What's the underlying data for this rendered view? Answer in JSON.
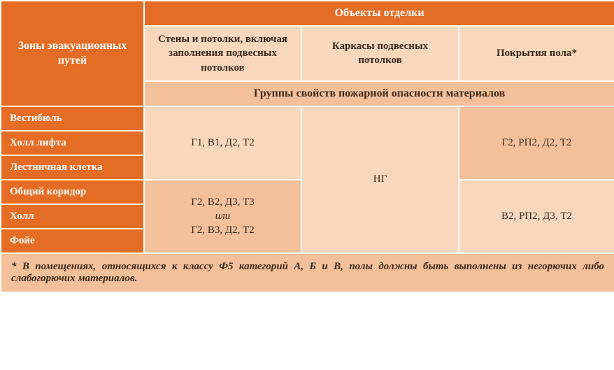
{
  "table": {
    "type": "table",
    "colors": {
      "orange": "#e56c24",
      "peach_light": "#f8d7bd",
      "peach_dark": "#f4c09a",
      "white": "#ffffff",
      "text_dark": "#3a2a1a",
      "text_light": "#ffffff",
      "border": "#ffffff"
    },
    "header": {
      "zones_title": "Зоны эвакуационных путей",
      "objects_title": "Объекты отделки",
      "sub_cols": {
        "walls": "Стены и потолки, включая заполнения подвесных потолков",
        "frames": "Каркасы подвесных потолков",
        "floors": "Покрытия пола*"
      },
      "groups_title": "Группы свойств пожарной опасности материалов"
    },
    "rows": {
      "r1": "Вестибюль",
      "r2": "Холл лифта",
      "r3": "Лестничная клетка",
      "r4": "Общий коридор",
      "r5": "Холл",
      "r6": "Фойе"
    },
    "cells": {
      "walls_top": "Г1, В1, Д2, Т2",
      "walls_bot_l1": "Г2, В2, Д3, Т3",
      "walls_bot_l2": "или",
      "walls_bot_l3": "Г2, В3, Д2, Т2",
      "frames_all": "НГ",
      "floors_top": "Г2, РП2, Д2, Т2",
      "floors_bot": "В2, РП2, Д3, Т2"
    },
    "footnote": "* В помещениях, относящихся к классу Ф5 категорий А, Б и В, полы должны быть выполнены из негорючих либо слабогорючих материалов."
  }
}
